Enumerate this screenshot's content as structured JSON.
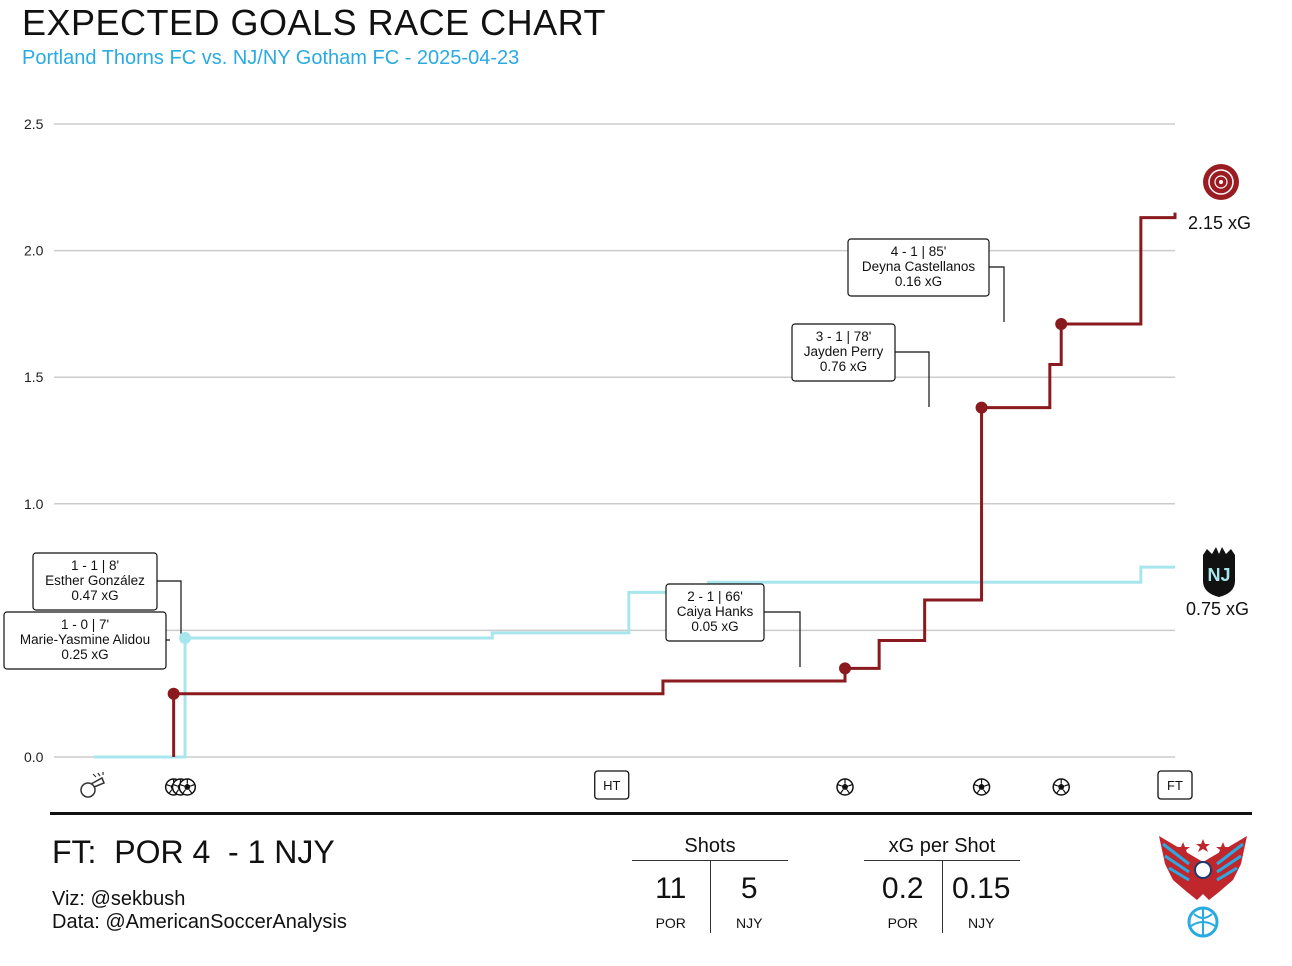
{
  "header": {
    "title": "EXPECTED GOALS RACE CHART",
    "subtitle": "Portland Thorns FC vs. NJ/NY Gotham FC - 2025-04-23"
  },
  "colors": {
    "por": "#8b1a1f",
    "njy": "#a8e6ee",
    "subtitle": "#29abe2",
    "grid": "#cccccc"
  },
  "chart_data": {
    "type": "line",
    "title": "EXPECTED GOALS RACE CHART",
    "subtitle": "Portland Thorns FC vs. NJ/NY Gotham FC - 2025-04-23",
    "xlabel": "",
    "ylabel": "",
    "xlim": [
      0,
      95
    ],
    "ylim": [
      0,
      2.5
    ],
    "yticks": [
      "0.0",
      "0.5",
      "1.0",
      "1.5",
      "2.0",
      "2.5"
    ],
    "ytick_values": [
      0,
      0.5,
      1.0,
      1.5,
      2.0,
      2.5
    ],
    "grid": "horizontal",
    "step": true,
    "series": [
      {
        "name": "POR",
        "color": "#8b1a1f",
        "final_label": "2.15 xG",
        "x": [
          7,
          50,
          66,
          69,
          73,
          78,
          84,
          85,
          92,
          95
        ],
        "y": [
          0.25,
          0.3,
          0.35,
          0.46,
          0.62,
          1.38,
          1.55,
          1.71,
          2.13,
          2.15
        ]
      },
      {
        "name": "NJY",
        "color": "#a8e6ee",
        "final_label": "0.75 xG",
        "x": [
          0,
          8,
          35,
          47,
          54,
          92,
          95
        ],
        "y": [
          0,
          0.47,
          0.49,
          0.65,
          0.69,
          0.75,
          0.75
        ]
      }
    ],
    "goals": [
      {
        "team": "POR",
        "minute": 7,
        "xg_cum": 0.25,
        "score": "1 - 0",
        "minute_label": "7'",
        "player": "Marie-Yasmine Alidou",
        "xg": "0.25 xG"
      },
      {
        "team": "NJY",
        "minute": 8,
        "xg_cum": 0.47,
        "score": "1 - 1",
        "minute_label": "8'",
        "player": "Esther González",
        "xg": "0.47 xG"
      },
      {
        "team": "POR",
        "minute": 66,
        "xg_cum": 0.35,
        "score": "2 - 1",
        "minute_label": "66'",
        "player": "Caiya Hanks",
        "xg": "0.05 xG"
      },
      {
        "team": "POR",
        "minute": 78,
        "xg_cum": 1.38,
        "score": "3 - 1",
        "minute_label": "78'",
        "player": "Jayden Perry",
        "xg": "0.76 xG"
      },
      {
        "team": "POR",
        "minute": 85,
        "xg_cum": 1.71,
        "score": "4 - 1",
        "minute_label": "85'",
        "player": "Deyna Castellanos",
        "xg": "0.16 xG"
      }
    ],
    "timeline_markers": [
      {
        "minute": 0,
        "kind": "whistle"
      },
      {
        "minute": 7,
        "kind": "ball"
      },
      {
        "minute": 7.6,
        "kind": "ball"
      },
      {
        "minute": 8.2,
        "kind": "ball"
      },
      {
        "minute": 45.5,
        "kind": "label",
        "text": "HT"
      },
      {
        "minute": 66,
        "kind": "ball"
      },
      {
        "minute": 78,
        "kind": "ball"
      },
      {
        "minute": 85,
        "kind": "ball"
      },
      {
        "minute": 95,
        "kind": "label",
        "text": "FT"
      }
    ]
  },
  "footer": {
    "score": "FT:  POR 4  - 1 NJY",
    "viz_credit": "Viz: @sekbush",
    "data_credit": "Data: @AmericanSoccerAnalysis",
    "stats": [
      {
        "title": "Shots",
        "left_value": "11",
        "right_value": "5",
        "left_team": "POR",
        "right_team": "NJY"
      },
      {
        "title": "xG per Shot",
        "left_value": "0.2",
        "right_value": "0.15",
        "left_team": "POR",
        "right_team": "NJY"
      }
    ]
  },
  "icons": {
    "por_logo": "thorns-crest-icon",
    "njy_logo": "gotham-nj-crest-icon",
    "asa_logo": "eagle-soccer-ball-icon",
    "whistle": "whistle-icon",
    "goal": "soccer-ball-icon"
  }
}
